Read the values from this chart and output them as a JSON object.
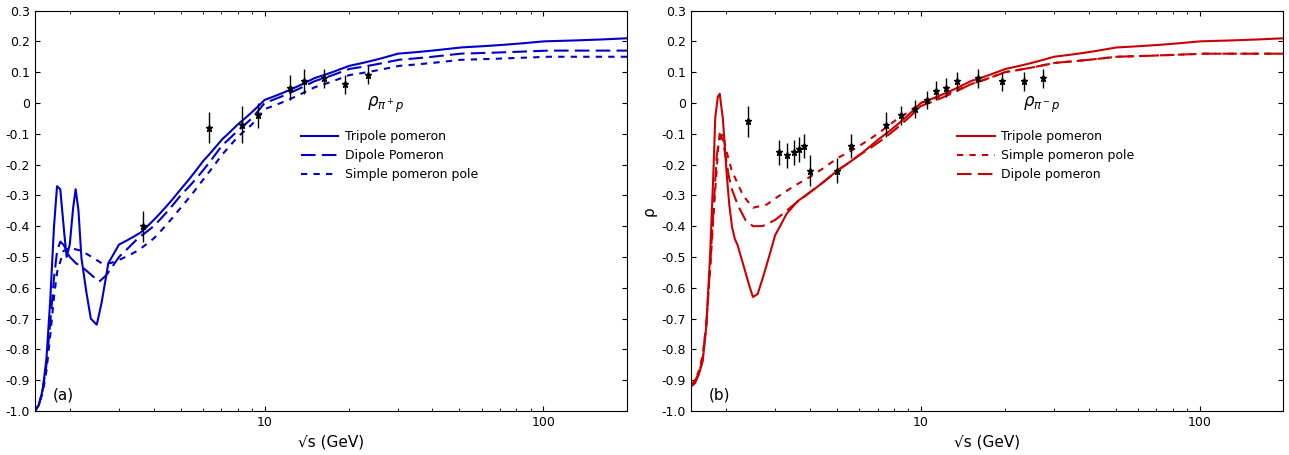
{
  "xlabel": "√s (GeV)",
  "ylabel_b": "ρ",
  "ylim": [
    -1.0,
    0.3
  ],
  "xlim": [
    1.5,
    200
  ],
  "label_a": "(a)",
  "label_b": "(b)",
  "color_a": "#0000cc",
  "color_b": "#cc0000",
  "data_points_a": {
    "x": [
      3.65,
      6.3,
      8.3,
      9.5,
      12.3,
      13.8,
      16.3,
      19.5,
      23.5
    ],
    "y": [
      -0.4,
      -0.08,
      -0.07,
      -0.04,
      0.05,
      0.07,
      0.08,
      0.06,
      0.09
    ],
    "yerr": [
      0.05,
      0.05,
      0.06,
      0.04,
      0.04,
      0.04,
      0.03,
      0.03,
      0.03
    ]
  },
  "data_points_b": {
    "x": [
      2.4,
      3.1,
      3.3,
      3.5,
      3.65,
      3.8,
      4.0,
      5.0,
      5.6,
      7.5,
      8.5,
      9.5,
      10.5,
      11.3,
      12.3,
      13.5,
      16.0,
      19.5,
      23.5,
      27.5
    ],
    "y": [
      -0.06,
      -0.16,
      -0.17,
      -0.16,
      -0.15,
      -0.14,
      -0.22,
      -0.22,
      -0.14,
      -0.07,
      -0.04,
      -0.02,
      0.01,
      0.04,
      0.05,
      0.07,
      0.08,
      0.07,
      0.07,
      0.08
    ],
    "yerr": [
      0.05,
      0.04,
      0.04,
      0.04,
      0.04,
      0.04,
      0.05,
      0.04,
      0.04,
      0.04,
      0.03,
      0.03,
      0.03,
      0.03,
      0.03,
      0.03,
      0.03,
      0.03,
      0.03,
      0.03
    ]
  }
}
